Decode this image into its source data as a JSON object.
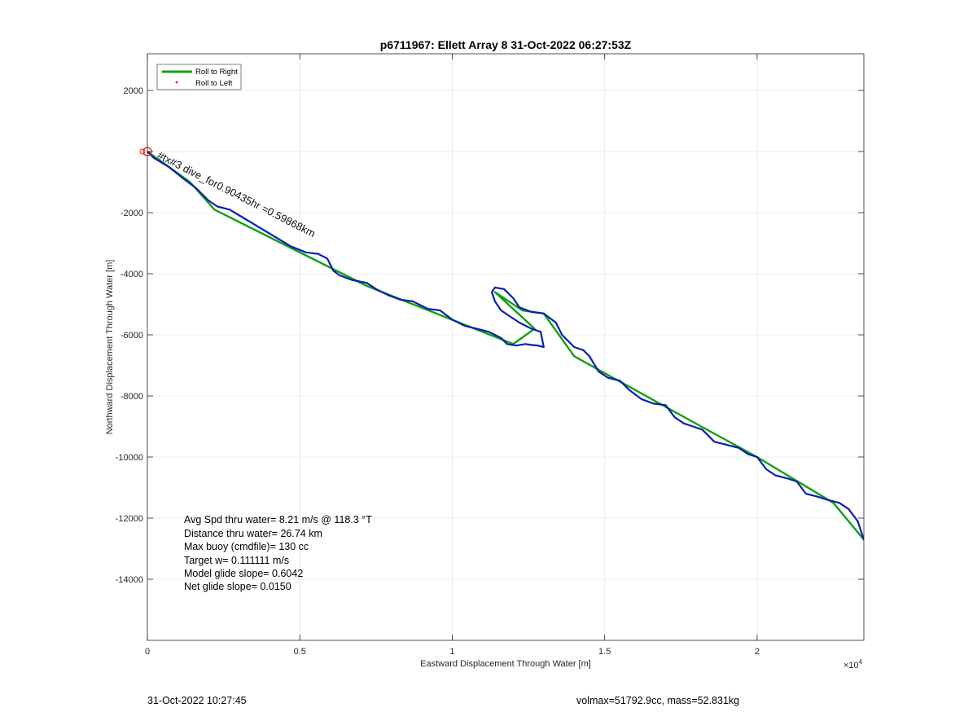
{
  "chart_data": {
    "type": "line",
    "title": "p6711967: Ellett Array 8 31-Oct-2022 06:27:53Z",
    "xlabel": "Eastward Displacement Through Water [m]",
    "ylabel": "Northward Displacement Through Water [m]",
    "x_exponent_label": "×10",
    "x_exponent_power": "4",
    "xlim": [
      0,
      23500
    ],
    "ylim": [
      -16000,
      3200
    ],
    "x_tick_values": [
      0,
      5000,
      10000,
      15000,
      20000
    ],
    "x_tick_labels": [
      "0",
      "0.5",
      "1",
      "1.5",
      "2"
    ],
    "y_tick_values": [
      2000,
      0,
      -2000,
      -4000,
      -6000,
      -8000,
      -10000,
      -12000,
      -14000
    ],
    "y_tick_labels": [
      "2000",
      "",
      "-2000",
      "-4000",
      "-6000",
      "-8000",
      "-10000",
      "-12000",
      "-14000"
    ],
    "grid": true,
    "legend_position": "top-left",
    "legend": [
      {
        "name": "Roll to Right",
        "color": "#13a013",
        "marker": "line"
      },
      {
        "name": "Roll to Left",
        "color": "#e31a1c",
        "marker": "dot"
      }
    ],
    "series": [
      {
        "name": "Roll to Right",
        "color": "#13a013",
        "x": [
          0,
          1400,
          2200,
          5200,
          7200,
          12000,
          12700,
          11400,
          12300,
          13000,
          14000,
          17800,
          20000,
          22500,
          23500
        ],
        "y": [
          0,
          -1000,
          -1900,
          -3400,
          -4400,
          -6300,
          -5800,
          -4600,
          -5200,
          -5300,
          -6700,
          -8800,
          -10000,
          -11500,
          -12700
        ]
      },
      {
        "name": "Track",
        "color": "#0a1fb3",
        "x": [
          0,
          200,
          700,
          1200,
          1600,
          2000,
          2300,
          2700,
          3200,
          3700,
          4200,
          4700,
          5200,
          5600,
          5900,
          6100,
          6300,
          6700,
          7200,
          7500,
          7900,
          8300,
          8700,
          9200,
          9600,
          10000,
          10400,
          10800,
          11200,
          11600,
          11800,
          12100,
          12400,
          12600,
          12800,
          13000,
          12900,
          12600,
          12200,
          11900,
          11600,
          11400,
          11300,
          11400,
          11700,
          12000,
          12200,
          12600,
          13000,
          13400,
          13600,
          14000,
          14300,
          14500,
          14800,
          15100,
          15500,
          15800,
          16200,
          16600,
          17000,
          17300,
          17600,
          17900,
          18200,
          18600,
          19000,
          19400,
          19700,
          20000,
          20300,
          20600,
          21000,
          21300,
          21600,
          22000,
          22300,
          22700,
          23000,
          23300,
          23500
        ],
        "y": [
          0,
          -200,
          -500,
          -900,
          -1200,
          -1600,
          -1800,
          -1900,
          -2200,
          -2500,
          -2800,
          -3100,
          -3300,
          -3350,
          -3500,
          -3900,
          -4050,
          -4200,
          -4300,
          -4500,
          -4700,
          -4850,
          -4900,
          -5150,
          -5200,
          -5500,
          -5700,
          -5800,
          -5900,
          -6100,
          -6300,
          -6350,
          -6300,
          -6330,
          -6350,
          -6400,
          -5900,
          -5800,
          -5600,
          -5400,
          -5200,
          -4900,
          -4600,
          -4450,
          -4500,
          -4800,
          -5100,
          -5250,
          -5300,
          -5600,
          -6000,
          -6400,
          -6500,
          -6700,
          -7200,
          -7400,
          -7500,
          -7800,
          -8100,
          -8250,
          -8300,
          -8700,
          -8900,
          -9000,
          -9100,
          -9500,
          -9600,
          -9700,
          -9900,
          -10000,
          -10400,
          -10600,
          -10700,
          -10800,
          -11200,
          -11300,
          -11400,
          -11500,
          -11700,
          -12100,
          -12700
        ]
      }
    ],
    "annotations": [
      {
        "text": "#tx#3 dive_for0.90435hr =0.59868km",
        "x": 300,
        "y": -200,
        "angle": 27
      }
    ],
    "start_markers": [
      {
        "x": 0,
        "y": 0,
        "color": "#e31a1c"
      }
    ],
    "stats": [
      "Avg Spd thru water=  8.21 m/s @ 118.3 °T",
      "Distance thru water= 26.74 km",
      "Max buoy (cmdfile)= 130 cc",
      "Target w= 0.111111 m/s",
      "Model glide slope= 0.6042",
      "Net glide slope= 0.0150"
    ]
  },
  "footer": {
    "timestamp": "31-Oct-2022 10:27:45",
    "volmax_mass": "volmax=51792.9cc, mass=52.831kg"
  }
}
